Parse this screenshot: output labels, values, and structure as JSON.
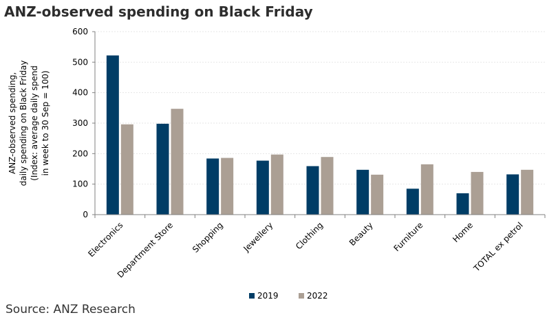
{
  "title": "ANZ-observed spending on Black Friday",
  "source": "Source: ANZ Research",
  "colors": {
    "s2019": "#003d66",
    "s2022": "#ab9f94",
    "grid": "#e6e6e6",
    "axis": "#808080"
  },
  "chart_data": {
    "type": "bar",
    "title": "ANZ-observed spending on Black Friday",
    "ylabel_lines": [
      "ANZ-observed spending,",
      "daily spending on Black Friday",
      "(Index: average daily spend",
      "in week to 30 Sep = 100)"
    ],
    "categories": [
      "Electronics",
      "Department Store",
      "Shopping",
      "Jewellery",
      "Clothing",
      "Beauty",
      "Furniture",
      "Home",
      "TOTAL ex petrol"
    ],
    "series": [
      {
        "name": "2019",
        "values": [
          522,
          298,
          184,
          177,
          159,
          147,
          85,
          70,
          132
        ]
      },
      {
        "name": "2022",
        "values": [
          296,
          347,
          186,
          197,
          189,
          131,
          165,
          140,
          147
        ]
      }
    ],
    "ylim": [
      0,
      600
    ],
    "yticks": [
      0,
      100,
      200,
      300,
      400,
      500,
      600
    ],
    "grid": true,
    "legend": "bottom-center"
  }
}
